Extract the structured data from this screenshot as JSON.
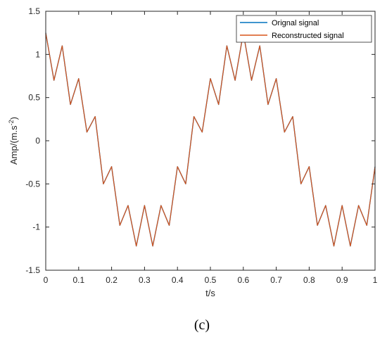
{
  "chart_data": {
    "type": "line",
    "title": "",
    "xlabel": "t/s",
    "ylabel": "Amp/(m.s",
    "ylabel_superscript": "-2",
    "ylabel_close": ")",
    "xlim": [
      0,
      1
    ],
    "ylim": [
      -1.5,
      1.5
    ],
    "xticks": [
      0,
      0.1,
      0.2,
      0.3,
      0.4,
      0.5,
      0.6,
      0.7,
      0.8,
      0.9,
      1
    ],
    "xtick_labels": [
      "0",
      "0.1",
      "0.2",
      "0.3",
      "0.4",
      "0.5",
      "0.6",
      "0.7",
      "0.8",
      "0.9",
      "1"
    ],
    "yticks": [
      -1.5,
      -1,
      -0.5,
      0,
      0.5,
      1,
      1.5
    ],
    "ytick_labels": [
      "-1.5",
      "-1",
      "-0.5",
      "0",
      "0.5",
      "1",
      "1.5"
    ],
    "grid": false,
    "legend_position": "top-right",
    "series": [
      {
        "name": "Orignal signal",
        "color": "#0072BD",
        "x": [
          0,
          0.025,
          0.05,
          0.075,
          0.1,
          0.125,
          0.15,
          0.175,
          0.2,
          0.225,
          0.25,
          0.275,
          0.3,
          0.325,
          0.35,
          0.375,
          0.4,
          0.425,
          0.45,
          0.475,
          0.5,
          0.525,
          0.55,
          0.575,
          0.6,
          0.625,
          0.65,
          0.675,
          0.7,
          0.725,
          0.75,
          0.775,
          0.8,
          0.825,
          0.85,
          0.875,
          0.9,
          0.925,
          0.95,
          0.975,
          1
        ],
        "y": [
          1.25,
          0.7,
          1.1,
          0.42,
          0.72,
          0.1,
          0.28,
          -0.5,
          -0.3,
          -0.98,
          -0.75,
          -1.22,
          -0.75,
          -1.22,
          -0.75,
          -0.98,
          -0.3,
          -0.5,
          0.28,
          0.1,
          0.72,
          0.42,
          1.1,
          0.7,
          1.25,
          0.7,
          1.1,
          0.42,
          0.72,
          0.1,
          0.28,
          -0.5,
          -0.3,
          -0.98,
          -0.75,
          -1.22,
          -0.75,
          -1.22,
          -0.75,
          -0.98,
          -0.3
        ]
      },
      {
        "name": "Reconstructed signal",
        "color": "#D95319",
        "x": [
          0,
          0.025,
          0.05,
          0.075,
          0.1,
          0.125,
          0.15,
          0.175,
          0.2,
          0.225,
          0.25,
          0.275,
          0.3,
          0.325,
          0.35,
          0.375,
          0.4,
          0.425,
          0.45,
          0.475,
          0.5,
          0.525,
          0.55,
          0.575,
          0.6,
          0.625,
          0.65,
          0.675,
          0.7,
          0.725,
          0.75,
          0.775,
          0.8,
          0.825,
          0.85,
          0.875,
          0.9,
          0.925,
          0.95,
          0.975,
          1
        ],
        "y": [
          1.25,
          0.7,
          1.1,
          0.42,
          0.72,
          0.1,
          0.28,
          -0.5,
          -0.3,
          -0.98,
          -0.75,
          -1.22,
          -0.75,
          -1.22,
          -0.75,
          -0.98,
          -0.3,
          -0.5,
          0.28,
          0.1,
          0.72,
          0.42,
          1.1,
          0.7,
          1.25,
          0.7,
          1.1,
          0.42,
          0.72,
          0.1,
          0.28,
          -0.5,
          -0.3,
          -0.98,
          -0.75,
          -1.22,
          -0.75,
          -1.22,
          -0.75,
          -0.98,
          -0.3
        ]
      }
    ]
  },
  "caption": "(c)",
  "colors": {
    "axis": "#262626",
    "original": "#0072BD",
    "reconstructed": "#D95319"
  }
}
